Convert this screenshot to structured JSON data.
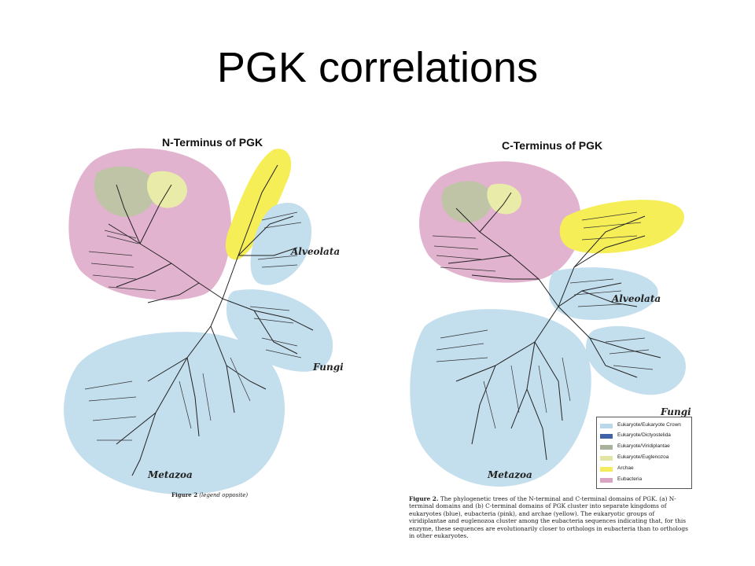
{
  "slide": {
    "title": "PGK correlations"
  },
  "left_panel": {
    "heading": "N-Terminus of PGK",
    "groups": [
      "Alveolata",
      "Fungi",
      "Metazoa"
    ],
    "figure_note_label": "Figure 2",
    "figure_note_text": "(legend opposite)"
  },
  "right_panel": {
    "heading": "C-Terminus of PGK",
    "groups": [
      "Alveolata",
      "Fungi",
      "Metazoa"
    ],
    "caption_label": "Figure 2.",
    "caption_text": "The phylogenetic trees of the N-terminal and C-terminal domains of PGK. (a) N-terminal domains and (b) C-terminal domains of PGK cluster into separate kingdoms of eukaryotes (blue), eubacteria (pink), and archae (yellow). The eukaryotic groups of viridiplantae and euglenozoa cluster among the eubacteria sequences indicating that, for this enzyme, these sequences are evolutionarily closer to orthologs in eubacteria than to orthologs in other eukaryotes.",
    "legend": [
      {
        "label": "Eukaryote/Eukaryote Crown",
        "color": "#b9d9ea"
      },
      {
        "label": "Eukaryote/Dictyostelida",
        "color": "#3f63a6"
      },
      {
        "label": "Eukaryote/Viridiplantae",
        "color": "#a9b39b"
      },
      {
        "label": "Eukaryote/Euglenozoa",
        "color": "#e3e6a3"
      },
      {
        "label": "Archae",
        "color": "#f3ec5c"
      },
      {
        "label": "Eubacteria",
        "color": "#d9a5c2"
      }
    ]
  },
  "colors": {
    "eubacteria": "#e2b3cf",
    "eukaryote": "#c3deed",
    "archae": "#f6ee57",
    "viridiplantae": "#bfc4a6",
    "euglenozoa": "#e8eca8",
    "branch": "#222222"
  }
}
